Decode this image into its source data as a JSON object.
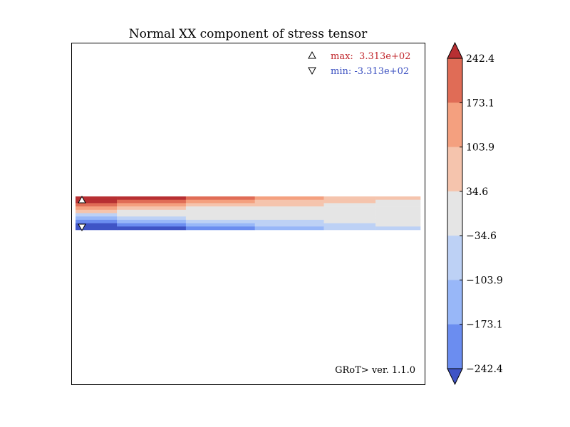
{
  "chart_data": {
    "type": "heatmap",
    "title": "Normal XX component of stress tensor",
    "legend": {
      "max_label": "max:  3.313e+02",
      "min_label": "min: -3.313e+02",
      "max_color": "#c0262b",
      "min_color": "#3a4fc0",
      "placement": "top-right"
    },
    "version_label": "GRoT> ver. 1.1.0",
    "colorbar": {
      "ticks": [
        "242.4",
        "173.1",
        "103.9",
        "34.6",
        "−34.6",
        "−103.9",
        "−173.1",
        "−242.4"
      ],
      "levels": [
        {
          "lo": 242.4,
          "hi": null,
          "color": "#b72f32"
        },
        {
          "lo": 173.1,
          "hi": 242.4,
          "color": "#e06c56"
        },
        {
          "lo": 103.9,
          "hi": 173.1,
          "color": "#f4a07f"
        },
        {
          "lo": 34.6,
          "hi": 103.9,
          "color": "#f5c4ad"
        },
        {
          "lo": -34.6,
          "hi": 34.6,
          "color": "#e5e5e5"
        },
        {
          "lo": -103.9,
          "hi": -34.6,
          "color": "#bdd1f5"
        },
        {
          "lo": -173.1,
          "hi": -103.9,
          "color": "#98b7f8"
        },
        {
          "lo": -242.4,
          "hi": -173.1,
          "color": "#6b8df0"
        },
        {
          "lo": null,
          "hi": -242.4,
          "color": "#3f54c6"
        }
      ]
    },
    "field": {
      "x_segments": [
        0,
        0.12,
        0.32,
        0.52,
        0.72,
        0.87,
        1.0
      ],
      "rows": [
        [
          331,
          250,
          200,
          150,
          80,
          40
        ],
        [
          280,
          190,
          150,
          100,
          60,
          20
        ],
        [
          200,
          120,
          80,
          60,
          20,
          10
        ],
        [
          110,
          40,
          30,
          20,
          10,
          0
        ],
        [
          40,
          10,
          5,
          0,
          0,
          0
        ],
        [
          -40,
          -10,
          -5,
          0,
          0,
          0
        ],
        [
          -110,
          -40,
          -30,
          -20,
          -10,
          0
        ],
        [
          -200,
          -120,
          -80,
          -60,
          -20,
          -10
        ],
        [
          -280,
          -190,
          -150,
          -100,
          -60,
          -20
        ],
        [
          -331,
          -250,
          -200,
          -150,
          -80,
          -40
        ]
      ],
      "max_value": 331.3,
      "min_value": -331.3
    }
  }
}
